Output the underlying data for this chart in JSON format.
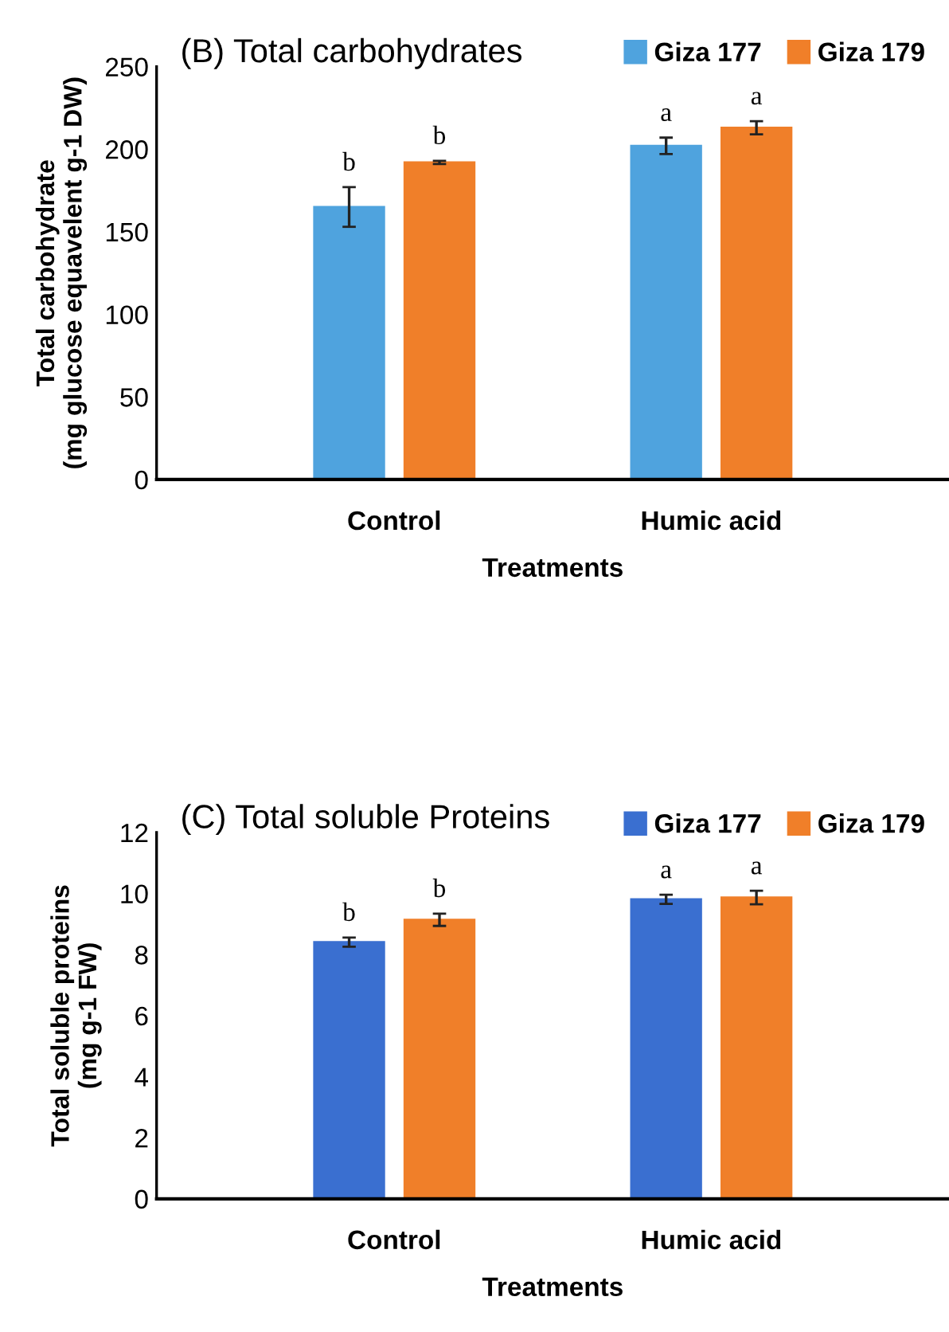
{
  "chart_data": [
    {
      "type": "bar",
      "title": "(B) Total carbohydrates",
      "xlabel": "Treatments",
      "ylabel": "Total carbohydrate\n(mg glucose equavelent g-1 DW)",
      "categories": [
        "Control",
        "Humic acid"
      ],
      "series": [
        {
          "name": "Giza 177",
          "color": "#4fa3de",
          "values": [
            165,
            202
          ],
          "errors": [
            12,
            5
          ]
        },
        {
          "name": "Giza 179",
          "color": "#f07f29",
          "values": [
            192,
            213
          ],
          "errors": [
            1,
            4
          ]
        }
      ],
      "ylim": [
        0,
        250
      ],
      "yticks": [
        0,
        50,
        100,
        150,
        200,
        250
      ],
      "legend": "top right",
      "grid": false,
      "annotations": [
        "b",
        "b",
        "a",
        "a"
      ]
    },
    {
      "type": "bar",
      "title": "(C) Total soluble Proteins",
      "xlabel": "Treatments",
      "ylabel": "Total soluble proteins\n(mg g-1 FW)",
      "categories": [
        "Control",
        "Humic acid"
      ],
      "series": [
        {
          "name": "Giza 177",
          "color": "#3a6fd0",
          "values": [
            8.41,
            9.81
          ],
          "errors": [
            0.15,
            0.15
          ]
        },
        {
          "name": "Giza 179",
          "color": "#f07f29",
          "values": [
            9.14,
            9.87
          ],
          "errors": [
            0.2,
            0.22
          ]
        }
      ],
      "ylim": [
        0,
        12
      ],
      "yticks": [
        0,
        2,
        4,
        6,
        8,
        10,
        12
      ],
      "legend": "top right",
      "grid": false,
      "annotations": [
        "b",
        "b",
        "a",
        "a"
      ]
    }
  ]
}
